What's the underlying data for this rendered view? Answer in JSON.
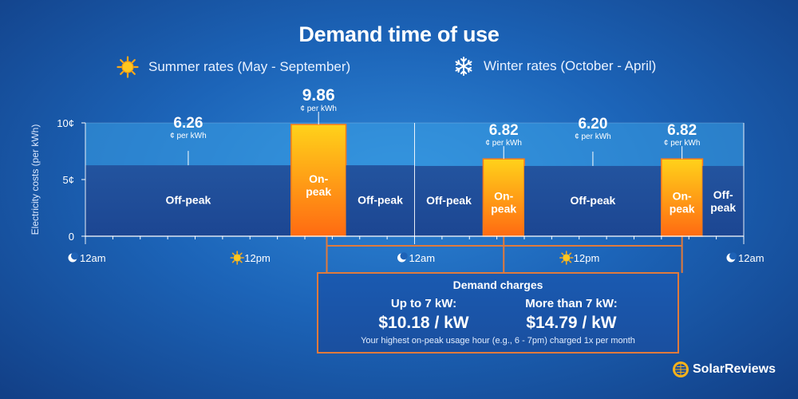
{
  "title": "Demand time of use",
  "legend": {
    "summer": {
      "label": "Summer rates (May - September)",
      "icon": "sun-icon"
    },
    "winter": {
      "label": "Winter rates (October - April)",
      "icon": "snowflake-icon"
    }
  },
  "colors": {
    "offpeak": "#1e4c9e",
    "offpeak_light": "#3a9ee4",
    "onpeak_top": "#ffd21a",
    "onpeak_bottom": "#ff6a12",
    "connector": "#e07a3c"
  },
  "chart_data": {
    "type": "bar",
    "ylabel": "Electricity costs (per kWh)",
    "ylim": [
      0,
      10
    ],
    "yticks": [
      {
        "value": 0,
        "label": "0"
      },
      {
        "value": 5,
        "label": "5¢"
      },
      {
        "value": 10,
        "label": "10¢"
      }
    ],
    "x_unit": "hour",
    "xlim": [
      0,
      48
    ],
    "xticks": [
      {
        "x": 0,
        "label": "12am",
        "icon": "moon-icon"
      },
      {
        "x": 12,
        "label": "12pm",
        "icon": "sun-icon"
      },
      {
        "x": 24,
        "label": "12am",
        "icon": "moon-icon"
      },
      {
        "x": 36,
        "label": "12pm",
        "icon": "sun-icon"
      },
      {
        "x": 48,
        "label": "12am",
        "icon": "moon-icon"
      }
    ],
    "rate_unit_label": "¢ per kWh",
    "segments": [
      {
        "season": "summer",
        "type": "off-peak",
        "label": "Off-peak",
        "start": 0,
        "end": 15,
        "rate": 6.26,
        "rate_label": "6.26"
      },
      {
        "season": "summer",
        "type": "on-peak",
        "label": "On-peak",
        "start": 15,
        "end": 19,
        "rate": 9.86,
        "rate_label": "9.86"
      },
      {
        "season": "summer",
        "type": "off-peak",
        "label": "Off-peak",
        "start": 19,
        "end": 24,
        "rate": 6.26
      },
      {
        "season": "winter",
        "type": "off-peak",
        "label": "Off-peak",
        "start": 24,
        "end": 29,
        "rate": 6.2
      },
      {
        "season": "winter",
        "type": "on-peak",
        "label": "On-peak",
        "start": 29,
        "end": 32,
        "rate": 6.82,
        "rate_label": "6.82"
      },
      {
        "season": "winter",
        "type": "off-peak",
        "label": "Off-peak",
        "start": 32,
        "end": 42,
        "rate": 6.2,
        "rate_label": "6.20"
      },
      {
        "season": "winter",
        "type": "on-peak",
        "label": "On-peak",
        "start": 42,
        "end": 45,
        "rate": 6.82,
        "rate_label": "6.82"
      },
      {
        "season": "winter",
        "type": "off-peak",
        "label": "Off-peak",
        "start": 45,
        "end": 48,
        "rate": 6.2
      }
    ]
  },
  "demand_box": {
    "title": "Demand charges",
    "tier1_label": "Up to 7 kW:",
    "tier1_value": "$10.18 / kW",
    "tier2_label": "More than 7 kW:",
    "tier2_value": "$14.79 / kW",
    "note": "Your highest on-peak usage hour (e.g., 6 - 7pm) charged 1x per month"
  },
  "brand": {
    "name": "SolarReviews",
    "icon": "solar-panel-globe-icon"
  }
}
